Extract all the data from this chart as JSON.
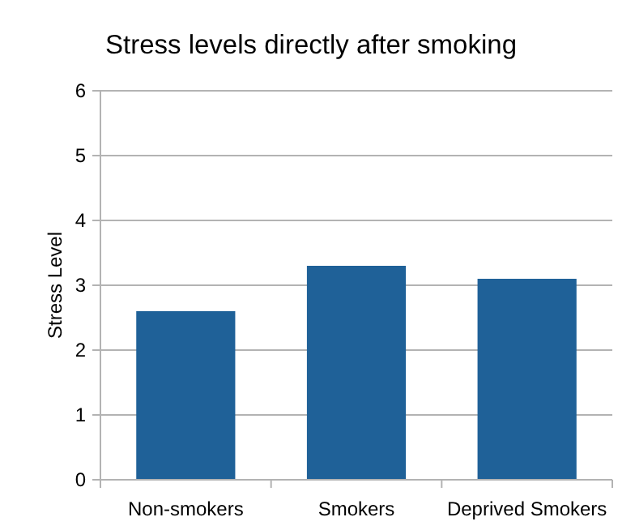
{
  "chart_data": {
    "type": "bar",
    "title": "Stress levels directly after smoking",
    "ylabel": "Stress Level",
    "categories": [
      "Non-smokers",
      "Smokers",
      "Deprived Smokers"
    ],
    "values": [
      2.6,
      3.3,
      3.1
    ],
    "color": "#1f6198",
    "ylim": [
      0,
      6
    ],
    "yticks": [
      0,
      1,
      2,
      3,
      4,
      5,
      6
    ],
    "grid": "y"
  }
}
